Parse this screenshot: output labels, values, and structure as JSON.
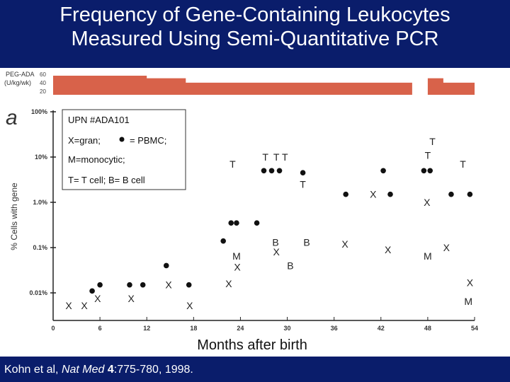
{
  "title_line1": "Frequency of Gene-Containing Leukocytes",
  "title_line2": "Measured Using Semi-Quantitative PCR",
  "panel_letter": "a",
  "peg_ada": {
    "label_line1": "PEG-ADA",
    "label_line2": "(U/kg/wk)",
    "tick_labels": [
      "60",
      "40",
      "20"
    ],
    "color": "#d8624a",
    "dose_profile": [
      {
        "from_month": 0,
        "to_month": 12,
        "dose": 60
      },
      {
        "from_month": 12,
        "to_month": 17,
        "dose": 52
      },
      {
        "from_month": 17,
        "to_month": 46,
        "dose": 38
      },
      {
        "from_month": 46,
        "to_month": 48,
        "dose": 0
      },
      {
        "from_month": 48,
        "to_month": 50,
        "dose": 52
      },
      {
        "from_month": 50,
        "to_month": 54,
        "dose": 38
      }
    ]
  },
  "legend": {
    "line1": "UPN #ADA101",
    "line2a": "X=gran;",
    "line2b": "= PBMC;",
    "line3": "M=monocytic;",
    "line4": "T= T cell; B= B cell"
  },
  "citation": {
    "prefix": "Kohn et al, ",
    "journal": "Nat Med",
    "volume": "4",
    "rest": ":775-780, 1998."
  },
  "chart_data": {
    "type": "scatter",
    "xlabel": "Months after birth",
    "ylabel": "% Cells with gene",
    "x_ticks": [
      0,
      6,
      12,
      18,
      24,
      30,
      36,
      42,
      48,
      54
    ],
    "xlim": [
      0,
      54
    ],
    "y_scale": "log",
    "y_ticks": [
      0.01,
      0.1,
      1.0,
      10,
      100
    ],
    "y_tick_labels": [
      "0.01%",
      "0.1%",
      "1.0%",
      "10%",
      "100%"
    ],
    "ylim": [
      0.005,
      100
    ],
    "series": [
      {
        "name": "PBMC",
        "marker": "dot",
        "points": [
          [
            5,
            0.011
          ],
          [
            6,
            0.015
          ],
          [
            9.8,
            0.015
          ],
          [
            11.5,
            0.015
          ],
          [
            14.5,
            0.04
          ],
          [
            17.4,
            0.015
          ],
          [
            21.8,
            0.14
          ],
          [
            22.8,
            0.35
          ],
          [
            23.5,
            0.35
          ],
          [
            26.1,
            0.35
          ],
          [
            27,
            5
          ],
          [
            28,
            5
          ],
          [
            29,
            5
          ],
          [
            32,
            4.5
          ],
          [
            37.5,
            1.5
          ],
          [
            42.3,
            5
          ],
          [
            43.2,
            1.5
          ],
          [
            47.5,
            5
          ],
          [
            48.3,
            5
          ],
          [
            51,
            1.5
          ],
          [
            53.4,
            1.5
          ]
        ]
      },
      {
        "name": "gran",
        "marker": "text",
        "label": "X",
        "points": [
          [
            2,
            0.0052
          ],
          [
            4,
            0.0052
          ],
          [
            5.7,
            0.0075
          ],
          [
            10,
            0.0075
          ],
          [
            14.8,
            0.015
          ],
          [
            17.5,
            0.0052
          ],
          [
            22.5,
            0.016
          ],
          [
            23.6,
            0.037
          ],
          [
            28.6,
            0.08
          ],
          [
            37.4,
            0.12
          ],
          [
            41,
            1.5
          ],
          [
            42.9,
            0.09
          ],
          [
            47.9,
            1.0
          ],
          [
            50.4,
            0.1
          ],
          [
            53.4,
            0.017
          ]
        ]
      },
      {
        "name": "monocytic",
        "marker": "text",
        "label": "M",
        "points": [
          [
            23.5,
            0.065
          ],
          [
            48,
            0.065
          ],
          [
            53.2,
            0.0065
          ]
        ]
      },
      {
        "name": "T cell",
        "marker": "text",
        "label": "T",
        "points": [
          [
            23,
            7
          ],
          [
            27.2,
            10
          ],
          [
            28.6,
            10
          ],
          [
            29.7,
            10
          ],
          [
            32,
            2.5
          ],
          [
            48.6,
            22
          ],
          [
            48,
            11
          ],
          [
            52.5,
            7
          ]
        ]
      },
      {
        "name": "B cell",
        "marker": "text",
        "label": "B",
        "points": [
          [
            28.5,
            0.13
          ],
          [
            32.5,
            0.13
          ],
          [
            30.4,
            0.04
          ]
        ]
      }
    ]
  }
}
